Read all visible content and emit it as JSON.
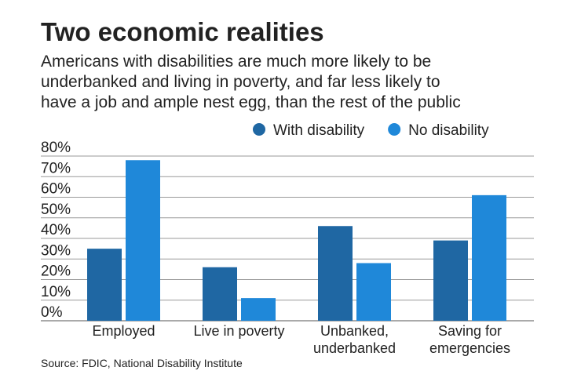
{
  "chart_data": {
    "type": "bar",
    "title": "Two economic realities",
    "subtitle": [
      "Americans with disabilities are much more likely to be",
      "underbanked and living in poverty, and far less likely to",
      "have a job and ample nest egg, than the rest of the public"
    ],
    "source": "Source: FDIC, National Disability Institute",
    "categories": [
      "Employed",
      "Live in poverty",
      "Unbanked, underbanked",
      "Saving for emergencies"
    ],
    "series": [
      {
        "name": "With disability",
        "color": "#1f67a3",
        "values": [
          35,
          26,
          46,
          39
        ]
      },
      {
        "name": "No disability",
        "color": "#1f88d9",
        "values": [
          78,
          11,
          28,
          61
        ]
      }
    ],
    "ylim": [
      0,
      80
    ],
    "yticks": [
      {
        "value": 0,
        "label": "0%"
      },
      {
        "value": 10,
        "label": "10%"
      },
      {
        "value": 20,
        "label": "20%"
      },
      {
        "value": 30,
        "label": "30%"
      },
      {
        "value": 40,
        "label": "40%"
      },
      {
        "value": 50,
        "label": "50%"
      },
      {
        "value": 60,
        "label": "60%"
      },
      {
        "value": 70,
        "label": "70%"
      },
      {
        "value": 80,
        "label": "80%"
      }
    ],
    "grid": true,
    "legend": "top-right"
  }
}
